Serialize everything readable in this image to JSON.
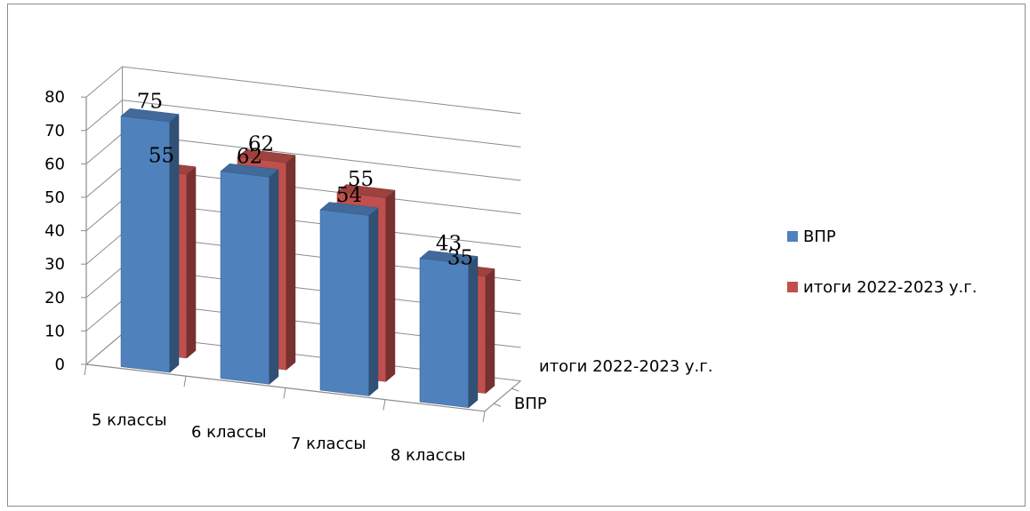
{
  "chart_data": {
    "type": "bar",
    "style": "3d-clustered",
    "categories": [
      "5 классы",
      "6 классы",
      "7 классы",
      "8 классы"
    ],
    "series": [
      {
        "name": "ВПР",
        "values": [
          75,
          62,
          54,
          43
        ],
        "color": "#4f81bd"
      },
      {
        "name": "итоги 2022-2023 у.г.",
        "values": [
          55,
          62,
          55,
          35
        ],
        "color": "#c0504d"
      }
    ],
    "ylim": [
      0,
      80
    ],
    "yticks": [
      0,
      10,
      20,
      30,
      40,
      50,
      60,
      70,
      80
    ],
    "depth_axis_labels": [
      "ВПР",
      "итоги 2022-2023 у.г."
    ],
    "grid": true,
    "legend_position": "right"
  }
}
